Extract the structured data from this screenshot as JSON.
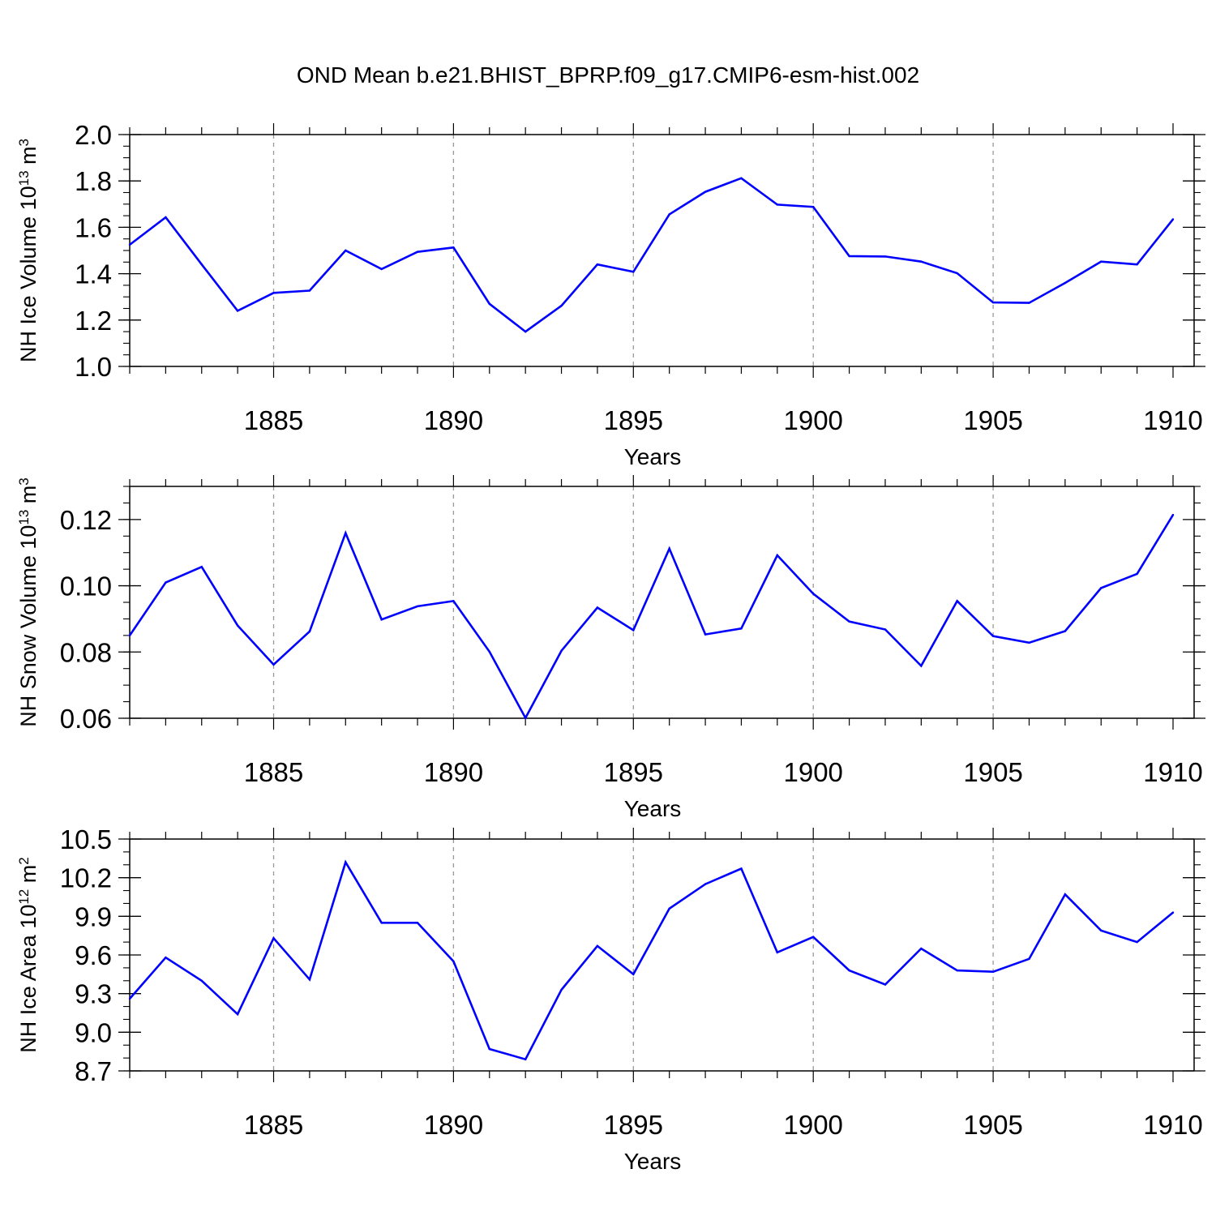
{
  "figure": {
    "title": "OND Mean b.e21.BHIST_BPRP.f09_g17.CMIP6-esm-hist.002"
  },
  "colors": {
    "line": "#0000FF",
    "axis": "#000000",
    "grid": "#999999",
    "background": "#FFFFFF"
  },
  "chart_data": [
    {
      "type": "line",
      "title": "OND Mean b.e21.BHIST_BPRP.f09_g17.CMIP6-esm-hist.002",
      "xlabel": "Years",
      "ylabel": {
        "prefix": "NH Ice Volume 10",
        "exponent": "13",
        "unit": " m",
        "unit_exponent": "3"
      },
      "xlim": [
        1881,
        1910
      ],
      "ylim": [
        1.0,
        2.0
      ],
      "x_ticks": [
        1885,
        1890,
        1895,
        1900,
        1905,
        1910
      ],
      "x_tick_labels": [
        "1885",
        "1890",
        "1895",
        "1900",
        "1905",
        "1910"
      ],
      "y_ticks": [
        1.0,
        1.2,
        1.4,
        1.6,
        1.8,
        2.0
      ],
      "y_tick_labels": [
        "1.0",
        "1.2",
        "1.4",
        "1.6",
        "1.8",
        "2.0"
      ],
      "y_minor_step": 0.05,
      "grid": "x-dashed",
      "x": [
        1881,
        1882,
        1883,
        1884,
        1885,
        1886,
        1887,
        1888,
        1889,
        1890,
        1891,
        1892,
        1893,
        1894,
        1895,
        1896,
        1897,
        1898,
        1899,
        1900,
        1901,
        1902,
        1903,
        1904,
        1905,
        1906,
        1907,
        1908,
        1909,
        1910
      ],
      "values": [
        1.525,
        1.643,
        1.44,
        1.24,
        1.317,
        1.327,
        1.5,
        1.42,
        1.494,
        1.513,
        1.27,
        1.15,
        1.262,
        1.44,
        1.408,
        1.656,
        1.753,
        1.812,
        1.698,
        1.688,
        1.476,
        1.474,
        1.452,
        1.402,
        1.276,
        1.274,
        1.36,
        1.452,
        1.44,
        1.635
      ]
    },
    {
      "type": "line",
      "xlabel": "Years",
      "ylabel": {
        "prefix": "NH Snow Volume 10",
        "exponent": "13",
        "unit": " m",
        "unit_exponent": "3"
      },
      "xlim": [
        1881,
        1910
      ],
      "ylim": [
        0.06,
        0.13
      ],
      "x_ticks": [
        1885,
        1890,
        1895,
        1900,
        1905,
        1910
      ],
      "x_tick_labels": [
        "1885",
        "1890",
        "1895",
        "1900",
        "1905",
        "1910"
      ],
      "y_ticks": [
        0.06,
        0.08,
        0.1,
        0.12
      ],
      "y_tick_labels": [
        "0.06",
        "0.08",
        "0.10",
        "0.12"
      ],
      "y_minor_step": 0.005,
      "grid": "x-dashed",
      "x": [
        1881,
        1882,
        1883,
        1884,
        1885,
        1886,
        1887,
        1888,
        1889,
        1890,
        1891,
        1892,
        1893,
        1894,
        1895,
        1896,
        1897,
        1898,
        1899,
        1900,
        1901,
        1902,
        1903,
        1904,
        1905,
        1906,
        1907,
        1908,
        1909,
        1910
      ],
      "values": [
        0.085,
        0.101,
        0.1057,
        0.088,
        0.0762,
        0.0862,
        0.1159,
        0.0898,
        0.0938,
        0.0954,
        0.0801,
        0.0601,
        0.0804,
        0.0934,
        0.0866,
        0.1112,
        0.0853,
        0.0871,
        0.1092,
        0.0976,
        0.0892,
        0.0868,
        0.0758,
        0.0954,
        0.0848,
        0.0828,
        0.0863,
        0.0993,
        0.1036,
        0.1214
      ]
    },
    {
      "type": "line",
      "xlabel": "Years",
      "ylabel": {
        "prefix": "NH Ice Area 10",
        "exponent": "12",
        "unit": " m",
        "unit_exponent": "2"
      },
      "xlim": [
        1881,
        1910
      ],
      "ylim": [
        8.7,
        10.5
      ],
      "x_ticks": [
        1885,
        1890,
        1895,
        1900,
        1905,
        1910
      ],
      "x_tick_labels": [
        "1885",
        "1890",
        "1895",
        "1900",
        "1905",
        "1910"
      ],
      "y_ticks": [
        8.7,
        9.0,
        9.3,
        9.6,
        9.9,
        10.2,
        10.5
      ],
      "y_tick_labels": [
        "8.7",
        "9.0",
        "9.3",
        "9.6",
        "9.9",
        "10.2",
        "10.5"
      ],
      "y_minor_step": 0.1,
      "grid": "x-dashed",
      "x": [
        1881,
        1882,
        1883,
        1884,
        1885,
        1886,
        1887,
        1888,
        1889,
        1890,
        1891,
        1892,
        1893,
        1894,
        1895,
        1896,
        1897,
        1898,
        1899,
        1900,
        1901,
        1902,
        1903,
        1904,
        1905,
        1906,
        1907,
        1908,
        1909,
        1910
      ],
      "values": [
        9.26,
        9.58,
        9.4,
        9.14,
        9.73,
        9.41,
        10.32,
        9.85,
        9.85,
        9.55,
        8.87,
        8.79,
        9.33,
        9.67,
        9.45,
        9.96,
        10.15,
        10.27,
        9.62,
        9.74,
        9.48,
        9.37,
        9.65,
        9.48,
        9.47,
        9.57,
        10.07,
        9.79,
        9.7,
        9.93
      ]
    }
  ]
}
